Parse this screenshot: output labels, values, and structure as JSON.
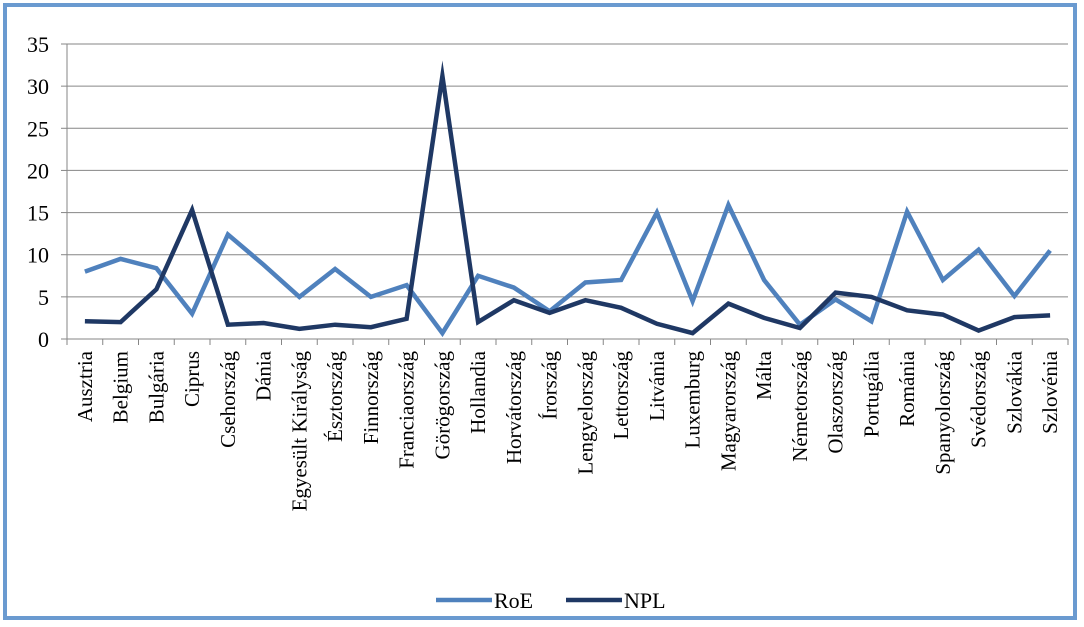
{
  "chart_data": {
    "type": "line",
    "categories": [
      "Ausztria",
      "Belgium",
      "Bulgária",
      "Ciprus",
      "Csehország",
      "Dánia",
      "Egyesült Királyság",
      "Észtország",
      "Finnország",
      "Franciaország",
      "Görögország",
      "Hollandia",
      "Horvátország",
      "Írország",
      "Lengyelország",
      "Lettország",
      "Litvánia",
      "Luxemburg",
      "Magyarország",
      "Málta",
      "Németország",
      "Olaszország",
      "Portugália",
      "Románia",
      "Spanyolország",
      "Svédország",
      "Szlovákia",
      "Szlovénia"
    ],
    "series": [
      {
        "name": "RoE",
        "color": "#4f81bd",
        "values": [
          8.0,
          9.5,
          8.4,
          3.0,
          12.4,
          8.8,
          5.0,
          8.3,
          5.0,
          6.4,
          0.7,
          7.5,
          6.1,
          3.3,
          6.7,
          7.0,
          15.0,
          4.5,
          15.9,
          7.0,
          1.7,
          4.7,
          2.1,
          15.1,
          7.0,
          10.6,
          5.1,
          10.5
        ]
      },
      {
        "name": "NPL",
        "color": "#1f3864",
        "values": [
          2.1,
          2.0,
          5.9,
          15.3,
          1.7,
          1.9,
          1.2,
          1.7,
          1.4,
          2.4,
          31.2,
          2.0,
          4.6,
          3.1,
          4.6,
          3.7,
          1.8,
          0.7,
          4.2,
          2.5,
          1.3,
          5.5,
          5.0,
          3.4,
          2.9,
          1.0,
          2.6,
          2.8
        ]
      }
    ],
    "ylim": [
      0,
      35
    ],
    "yticks": [
      0,
      5,
      10,
      15,
      20,
      25,
      30,
      35
    ],
    "grid": true,
    "legend": "bottom"
  }
}
